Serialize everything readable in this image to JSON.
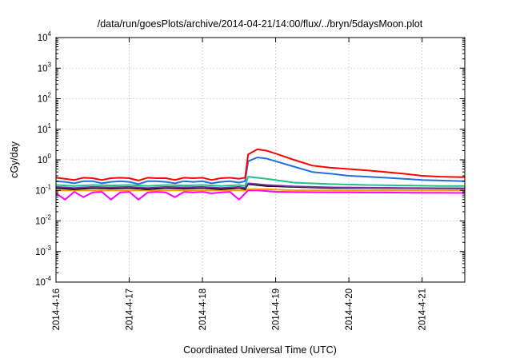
{
  "chart_data": {
    "type": "line",
    "title": "/data/run/goesPlots/archive/2014-04-21/14:00/flux/../bryn/5daysMoon.plot",
    "xlabel": "Coordinated Universal Time (UTC)",
    "ylabel": "cGy/day",
    "yscale": "log",
    "ylim": [
      0.0001,
      10000
    ],
    "xlim": [
      "2014-04-16",
      "2014-04-21T14:00"
    ],
    "grid": true,
    "legend": "none",
    "x_ticks": [
      "2014-4-16",
      "2014-4-17",
      "2014-4-18",
      "2014-4-19",
      "2014-4-20",
      "2014-4-21"
    ],
    "y_ticks": [
      {
        "value": 0.0001,
        "base": "10",
        "exp": "-4"
      },
      {
        "value": 0.001,
        "base": "10",
        "exp": "-3"
      },
      {
        "value": 0.01,
        "base": "10",
        "exp": "-2"
      },
      {
        "value": 0.1,
        "base": "10",
        "exp": "-1"
      },
      {
        "value": 1,
        "base": "10",
        "exp": "0"
      },
      {
        "value": 10,
        "base": "10",
        "exp": "1"
      },
      {
        "value": 100,
        "base": "10",
        "exp": "2"
      },
      {
        "value": 1000,
        "base": "10",
        "exp": "3"
      },
      {
        "value": 10000,
        "base": "10",
        "exp": "4"
      }
    ],
    "series": [
      {
        "color": "#ff00ff",
        "x": [
          "2014-04-16T00:00",
          "2014-04-16T03:00",
          "2014-04-16T06:00",
          "2014-04-16T09:00",
          "2014-04-16T12:00",
          "2014-04-16T15:00",
          "2014-04-16T18:00",
          "2014-04-16T21:00",
          "2014-04-17T00:00",
          "2014-04-17T03:00",
          "2014-04-17T06:00",
          "2014-04-17T09:00",
          "2014-04-17T12:00",
          "2014-04-17T15:00",
          "2014-04-17T18:00",
          "2014-04-17T21:00",
          "2014-04-18T00:00",
          "2014-04-18T03:00",
          "2014-04-18T06:00",
          "2014-04-18T09:00",
          "2014-04-18T12:00",
          "2014-04-18T14:00",
          "2014-04-18T15:00",
          "2014-04-18T18:00",
          "2014-04-18T21:00",
          "2014-04-19T00:00",
          "2014-04-19T06:00",
          "2014-04-19T12:00",
          "2014-04-19T18:00",
          "2014-04-20T00:00",
          "2014-04-20T06:00",
          "2014-04-20T12:00",
          "2014-04-20T18:00",
          "2014-04-21T00:00",
          "2014-04-21T06:00",
          "2014-04-21T14:00"
        ],
        "values": [
          0.08,
          0.05,
          0.09,
          0.06,
          0.085,
          0.09,
          0.05,
          0.085,
          0.09,
          0.05,
          0.085,
          0.09,
          0.085,
          0.06,
          0.09,
          0.085,
          0.09,
          0.08,
          0.085,
          0.09,
          0.05,
          0.08,
          0.1,
          0.1,
          0.095,
          0.09,
          0.088,
          0.087,
          0.086,
          0.086,
          0.085,
          0.085,
          0.084,
          0.083,
          0.083,
          0.082
        ]
      },
      {
        "color": "#ff9900",
        "x": [
          "2014-04-16T00:00",
          "2014-04-16T12:00",
          "2014-04-17T00:00",
          "2014-04-17T12:00",
          "2014-04-18T00:00",
          "2014-04-18T12:00",
          "2014-04-18T14:00",
          "2014-04-18T15:00",
          "2014-04-18T21:00",
          "2014-04-19T06:00",
          "2014-04-19T18:00",
          "2014-04-20T06:00",
          "2014-04-20T18:00",
          "2014-04-21T06:00",
          "2014-04-21T14:00"
        ],
        "values": [
          0.1,
          0.1,
          0.1,
          0.1,
          0.1,
          0.1,
          0.1,
          0.11,
          0.11,
          0.1,
          0.1,
          0.1,
          0.1,
          0.1,
          0.1
        ]
      },
      {
        "color": "#000000",
        "x": [
          "2014-04-16T00:00",
          "2014-04-16T06:00",
          "2014-04-16T12:00",
          "2014-04-16T18:00",
          "2014-04-17T00:00",
          "2014-04-17T06:00",
          "2014-04-17T12:00",
          "2014-04-17T18:00",
          "2014-04-18T00:00",
          "2014-04-18T06:00",
          "2014-04-18T12:00",
          "2014-04-18T14:00",
          "2014-04-18T15:00",
          "2014-04-18T21:00",
          "2014-04-19T06:00",
          "2014-04-19T18:00",
          "2014-04-20T06:00",
          "2014-04-20T18:00",
          "2014-04-21T06:00",
          "2014-04-21T14:00"
        ],
        "values": [
          0.12,
          0.11,
          0.12,
          0.115,
          0.12,
          0.11,
          0.12,
          0.115,
          0.12,
          0.11,
          0.12,
          0.11,
          0.16,
          0.14,
          0.13,
          0.12,
          0.12,
          0.118,
          0.116,
          0.115
        ]
      },
      {
        "color": "#7b2ea3",
        "x": [
          "2014-04-16T00:00",
          "2014-04-16T06:00",
          "2014-04-16T12:00",
          "2014-04-16T18:00",
          "2014-04-17T00:00",
          "2014-04-17T06:00",
          "2014-04-17T12:00",
          "2014-04-17T18:00",
          "2014-04-18T00:00",
          "2014-04-18T06:00",
          "2014-04-18T12:00",
          "2014-04-18T14:00",
          "2014-04-18T15:00",
          "2014-04-18T21:00",
          "2014-04-19T06:00",
          "2014-04-19T18:00",
          "2014-04-20T06:00",
          "2014-04-20T18:00",
          "2014-04-21T06:00",
          "2014-04-21T14:00"
        ],
        "values": [
          0.13,
          0.12,
          0.13,
          0.125,
          0.13,
          0.12,
          0.13,
          0.125,
          0.13,
          0.12,
          0.13,
          0.12,
          0.17,
          0.15,
          0.135,
          0.125,
          0.122,
          0.12,
          0.118,
          0.117
        ]
      },
      {
        "color": "#1fbf8f",
        "x": [
          "2014-04-16T00:00",
          "2014-04-16T06:00",
          "2014-04-16T12:00",
          "2014-04-16T18:00",
          "2014-04-17T00:00",
          "2014-04-17T06:00",
          "2014-04-17T12:00",
          "2014-04-17T18:00",
          "2014-04-18T00:00",
          "2014-04-18T06:00",
          "2014-04-18T12:00",
          "2014-04-18T14:00",
          "2014-04-18T15:00",
          "2014-04-18T21:00",
          "2014-04-19T06:00",
          "2014-04-19T18:00",
          "2014-04-20T06:00",
          "2014-04-20T18:00",
          "2014-04-21T06:00",
          "2014-04-21T14:00"
        ],
        "values": [
          0.15,
          0.14,
          0.15,
          0.145,
          0.15,
          0.14,
          0.15,
          0.145,
          0.15,
          0.14,
          0.15,
          0.14,
          0.28,
          0.24,
          0.18,
          0.16,
          0.15,
          0.145,
          0.14,
          0.14
        ]
      },
      {
        "color": "#1f6fe0",
        "x": [
          "2014-04-16T00:00",
          "2014-04-16T03:00",
          "2014-04-16T06:00",
          "2014-04-16T09:00",
          "2014-04-16T12:00",
          "2014-04-16T15:00",
          "2014-04-16T18:00",
          "2014-04-16T21:00",
          "2014-04-17T00:00",
          "2014-04-17T03:00",
          "2014-04-17T06:00",
          "2014-04-17T09:00",
          "2014-04-17T12:00",
          "2014-04-17T15:00",
          "2014-04-17T18:00",
          "2014-04-17T21:00",
          "2014-04-18T00:00",
          "2014-04-18T03:00",
          "2014-04-18T06:00",
          "2014-04-18T09:00",
          "2014-04-18T12:00",
          "2014-04-18T14:00",
          "2014-04-18T15:00",
          "2014-04-18T18:00",
          "2014-04-18T21:00",
          "2014-04-19T00:00",
          "2014-04-19T06:00",
          "2014-04-19T12:00",
          "2014-04-19T18:00",
          "2014-04-20T00:00",
          "2014-04-20T06:00",
          "2014-04-20T12:00",
          "2014-04-20T18:00",
          "2014-04-21T00:00",
          "2014-04-21T06:00",
          "2014-04-21T14:00"
        ],
        "values": [
          0.2,
          0.19,
          0.17,
          0.2,
          0.2,
          0.17,
          0.19,
          0.2,
          0.19,
          0.16,
          0.2,
          0.2,
          0.19,
          0.17,
          0.2,
          0.19,
          0.2,
          0.17,
          0.19,
          0.2,
          0.18,
          0.2,
          0.9,
          1.2,
          1.1,
          0.9,
          0.6,
          0.4,
          0.35,
          0.3,
          0.28,
          0.26,
          0.24,
          0.22,
          0.21,
          0.2
        ]
      },
      {
        "color": "#ff0000",
        "x": [
          "2014-04-16T00:00",
          "2014-04-16T03:00",
          "2014-04-16T06:00",
          "2014-04-16T09:00",
          "2014-04-16T12:00",
          "2014-04-16T15:00",
          "2014-04-16T18:00",
          "2014-04-16T21:00",
          "2014-04-17T00:00",
          "2014-04-17T03:00",
          "2014-04-17T06:00",
          "2014-04-17T09:00",
          "2014-04-17T12:00",
          "2014-04-17T15:00",
          "2014-04-17T18:00",
          "2014-04-17T21:00",
          "2014-04-18T00:00",
          "2014-04-18T03:00",
          "2014-04-18T06:00",
          "2014-04-18T09:00",
          "2014-04-18T12:00",
          "2014-04-18T14:00",
          "2014-04-18T15:00",
          "2014-04-18T18:00",
          "2014-04-18T21:00",
          "2014-04-19T00:00",
          "2014-04-19T06:00",
          "2014-04-19T12:00",
          "2014-04-19T18:00",
          "2014-04-20T00:00",
          "2014-04-20T06:00",
          "2014-04-20T12:00",
          "2014-04-20T18:00",
          "2014-04-21T00:00",
          "2014-04-21T06:00",
          "2014-04-21T14:00"
        ],
        "values": [
          0.26,
          0.24,
          0.22,
          0.26,
          0.25,
          0.22,
          0.25,
          0.26,
          0.25,
          0.21,
          0.26,
          0.25,
          0.25,
          0.22,
          0.26,
          0.25,
          0.26,
          0.22,
          0.25,
          0.26,
          0.24,
          0.26,
          1.5,
          2.2,
          2.0,
          1.6,
          1.0,
          0.65,
          0.55,
          0.5,
          0.45,
          0.4,
          0.35,
          0.3,
          0.28,
          0.27
        ]
      }
    ]
  }
}
